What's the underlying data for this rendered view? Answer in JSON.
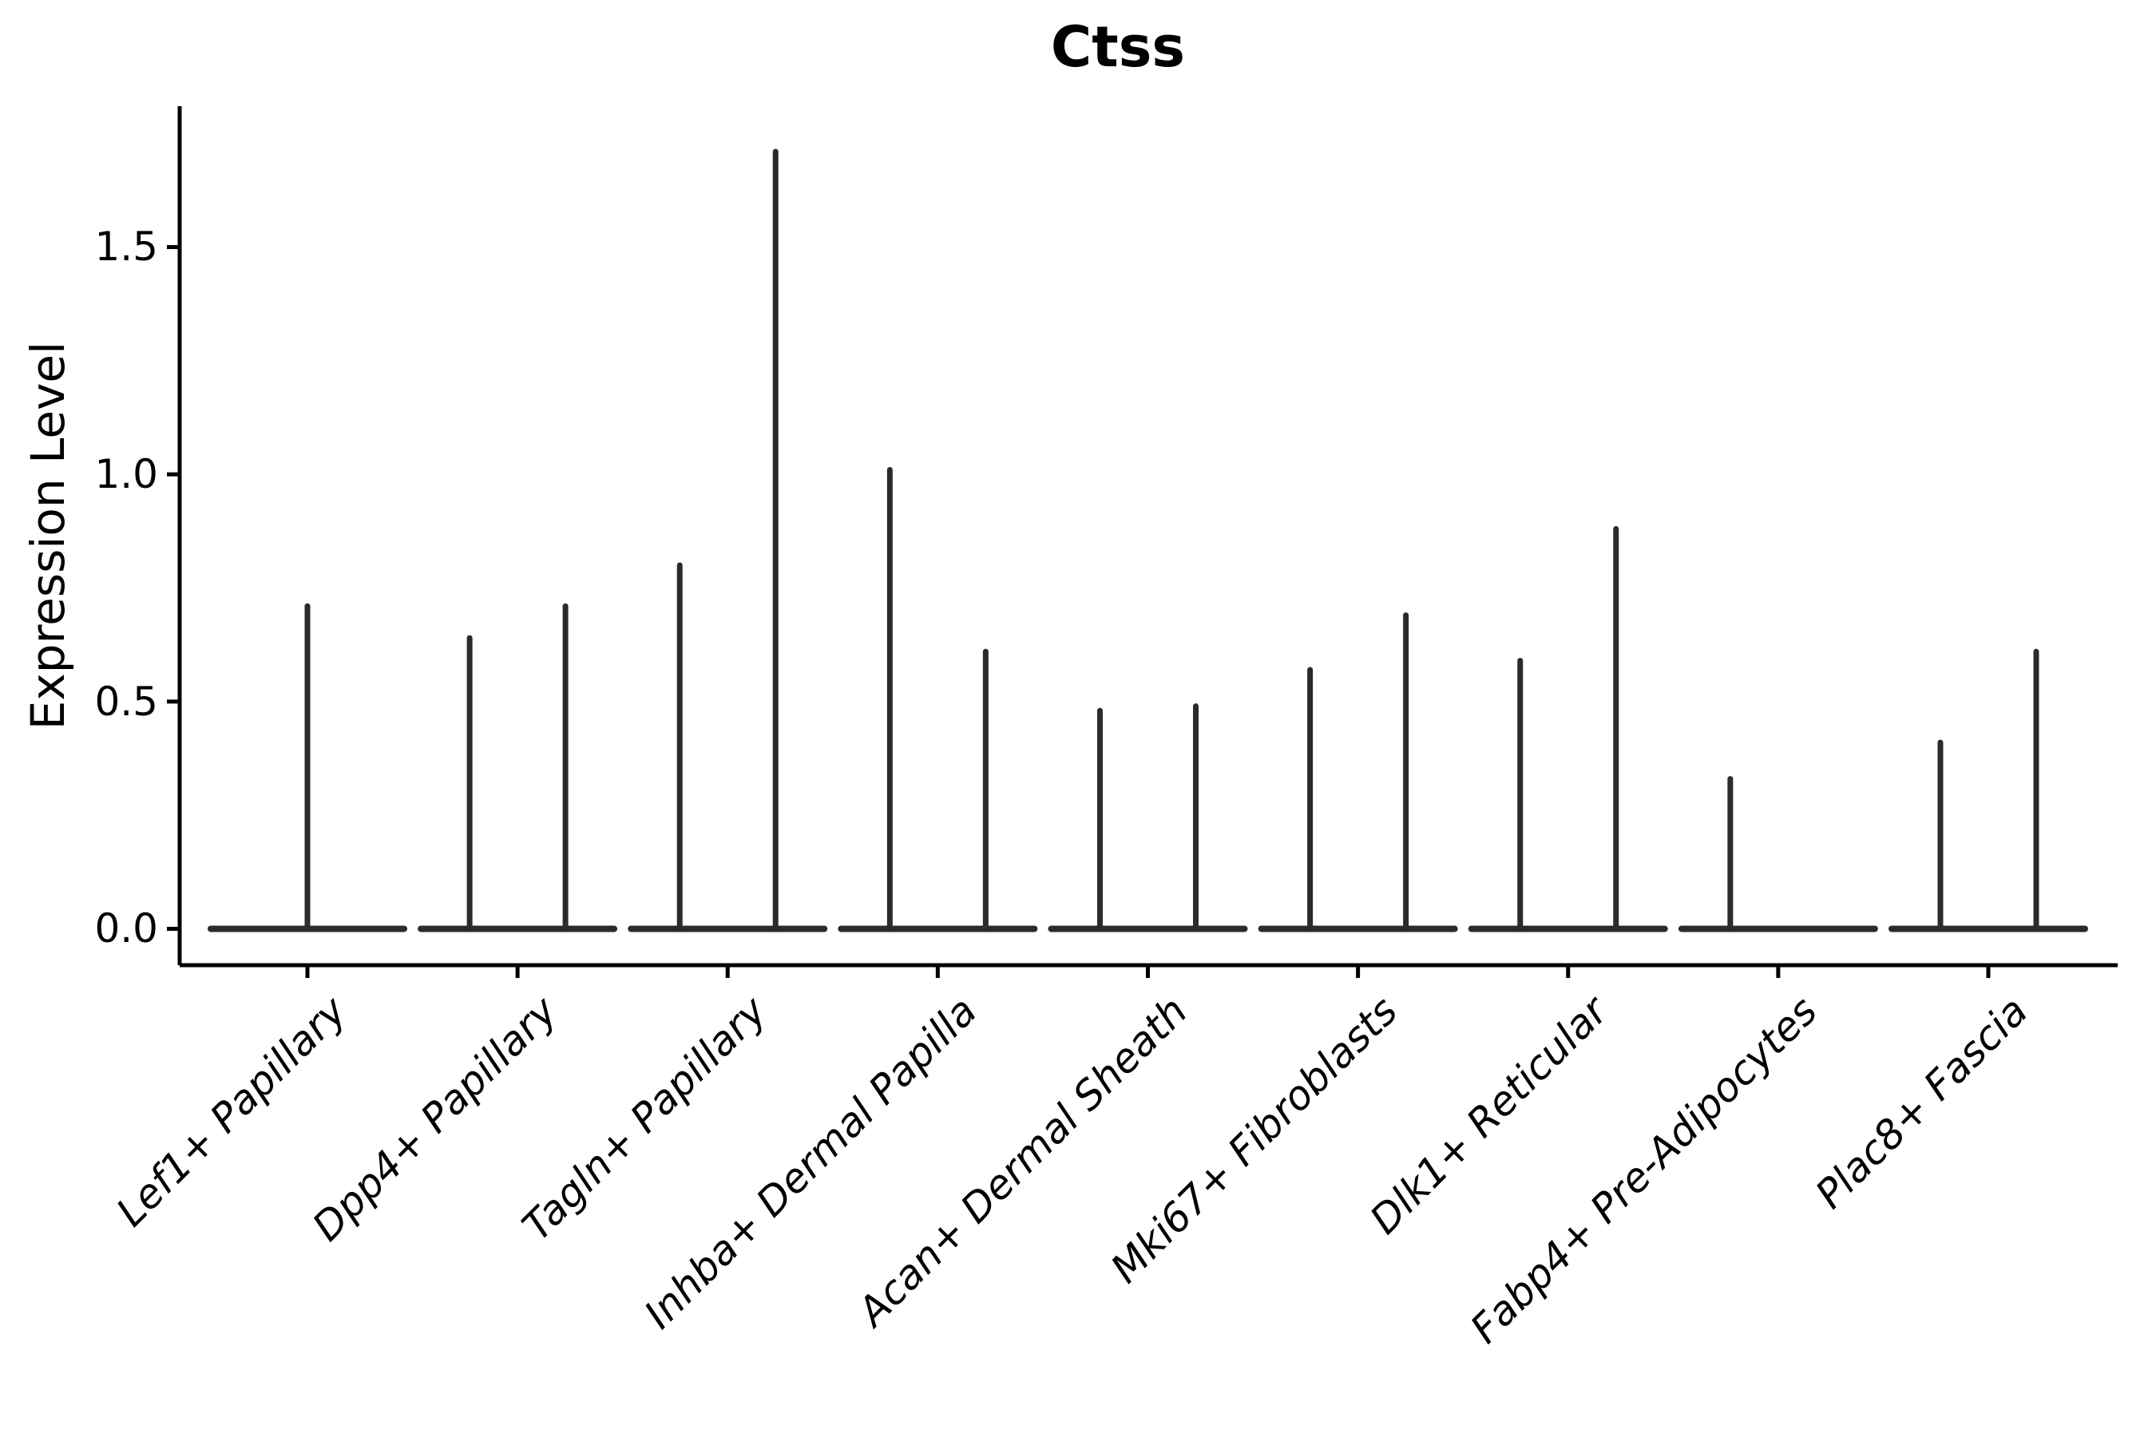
{
  "chart_data": {
    "type": "violin",
    "title": "Ctss",
    "xlabel": "",
    "ylabel": "Expression Level",
    "ylim": [
      -0.08,
      1.81
    ],
    "grid": false,
    "legend": null,
    "violin_style": "needle violins: wide flat base at expression 0 with thin vertical spike up to the maximum expression value; categories with two groups show two side-by-side spikes",
    "violin_color": "#2b2b2b",
    "axis_color": "#000000",
    "yticks": [
      {
        "label": "0.0",
        "value": 0.0
      },
      {
        "label": "0.5",
        "value": 0.5
      },
      {
        "label": "1.0",
        "value": 1.0
      },
      {
        "label": "1.5",
        "value": 1.5
      }
    ],
    "categories": [
      "Lef1+ Papillary",
      "Dpp4+ Papillary",
      "Tagln+ Papillary",
      "Inhba+ Dermal Papilla",
      "Acan+ Dermal Sheath",
      "Mki67+ Fibroblasts",
      "Dlk1+ Reticular",
      "Fabp4+ Pre-Adipocytes",
      "Plac8+ Fascia"
    ],
    "series": [
      {
        "category": "Lef1+ Papillary",
        "spikes": [
          {
            "pos": "center",
            "max": 0.71
          }
        ]
      },
      {
        "category": "Dpp4+ Papillary",
        "spikes": [
          {
            "pos": "left",
            "max": 0.64
          },
          {
            "pos": "right",
            "max": 0.71
          }
        ]
      },
      {
        "category": "Tagln+ Papillary",
        "spikes": [
          {
            "pos": "left",
            "max": 0.8
          },
          {
            "pos": "right",
            "max": 1.71
          }
        ]
      },
      {
        "category": "Inhba+ Dermal Papilla",
        "spikes": [
          {
            "pos": "left",
            "max": 1.01
          },
          {
            "pos": "right",
            "max": 0.61
          }
        ]
      },
      {
        "category": "Acan+ Dermal Sheath",
        "spikes": [
          {
            "pos": "left",
            "max": 0.48
          },
          {
            "pos": "right",
            "max": 0.49
          }
        ]
      },
      {
        "category": "Mki67+ Fibroblasts",
        "spikes": [
          {
            "pos": "left",
            "max": 0.57
          },
          {
            "pos": "right",
            "max": 0.69
          }
        ]
      },
      {
        "category": "Dlk1+ Reticular",
        "spikes": [
          {
            "pos": "left",
            "max": 0.59
          },
          {
            "pos": "right",
            "max": 0.88
          }
        ]
      },
      {
        "category": "Fabp4+ Pre-Adipocytes",
        "spikes": [
          {
            "pos": "left",
            "max": 0.33
          }
        ]
      },
      {
        "category": "Plac8+ Fascia",
        "spikes": [
          {
            "pos": "left",
            "max": 0.41
          },
          {
            "pos": "right",
            "max": 0.61
          }
        ]
      }
    ]
  }
}
